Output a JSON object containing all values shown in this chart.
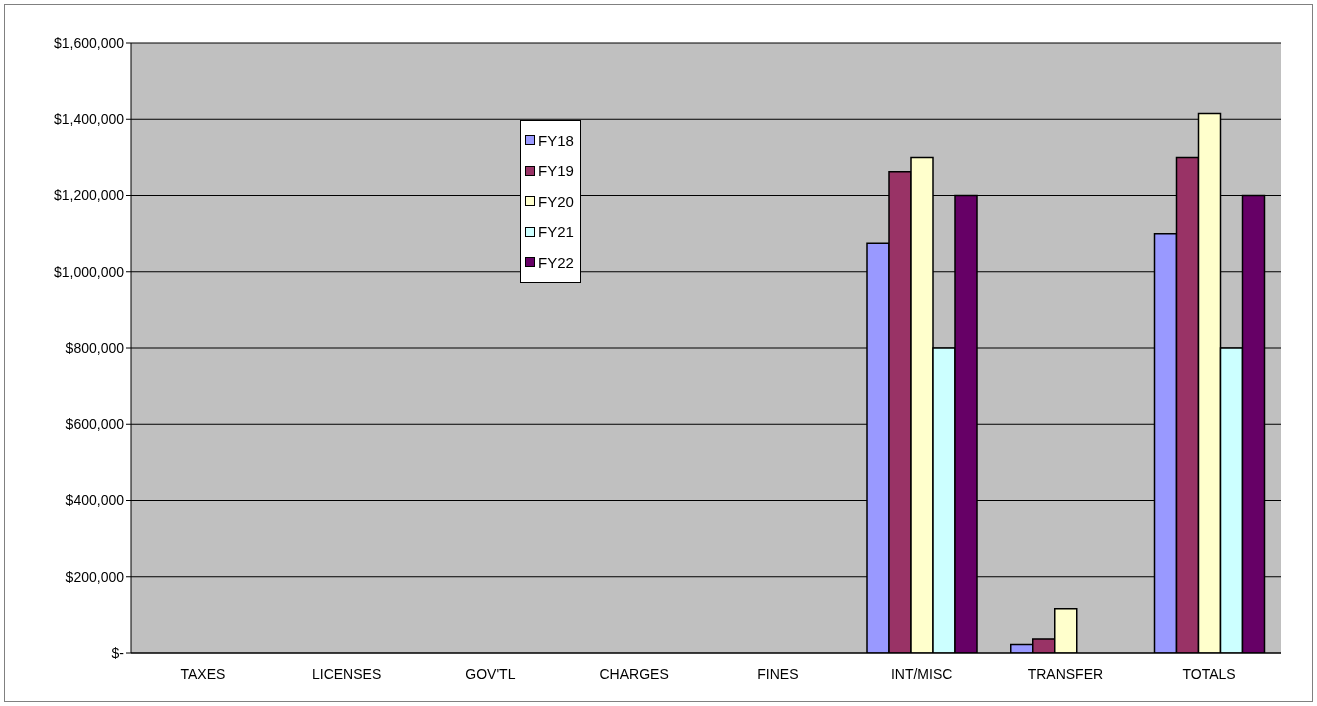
{
  "chart_data": {
    "type": "bar",
    "categories": [
      "TAXES",
      "LICENSES",
      "GOV'TL",
      "CHARGES",
      "FINES",
      "INT/MISC",
      "TRANSFER",
      "TOTALS"
    ],
    "series": [
      {
        "name": "FY18",
        "color": "#9999ff",
        "values": [
          null,
          null,
          null,
          null,
          null,
          1075000,
          22000,
          1100000
        ]
      },
      {
        "name": "FY19",
        "color": "#993366",
        "values": [
          null,
          null,
          null,
          null,
          null,
          1262000,
          37000,
          1300000
        ]
      },
      {
        "name": "FY20",
        "color": "#ffffcc",
        "values": [
          null,
          null,
          null,
          null,
          null,
          1300000,
          116000,
          1415000
        ]
      },
      {
        "name": "FY21",
        "color": "#ccffff",
        "values": [
          null,
          null,
          null,
          null,
          null,
          800000,
          null,
          800000
        ]
      },
      {
        "name": "FY22",
        "color": "#660066",
        "values": [
          null,
          null,
          null,
          null,
          null,
          1200000,
          null,
          1200000
        ]
      }
    ],
    "ylim": [
      0,
      1600000
    ],
    "yticks": [
      {
        "value": 0,
        "label": "$-"
      },
      {
        "value": 200000,
        "label": "$200,000"
      },
      {
        "value": 400000,
        "label": "$400,000"
      },
      {
        "value": 600000,
        "label": "$600,000"
      },
      {
        "value": 800000,
        "label": "$800,000"
      },
      {
        "value": 1000000,
        "label": "$1,000,000"
      },
      {
        "value": 1200000,
        "label": "$1,200,000"
      },
      {
        "value": 1400000,
        "label": "$1,400,000"
      },
      {
        "value": 1600000,
        "label": "$1,600,000"
      }
    ],
    "grid": "y",
    "legend": "top"
  }
}
